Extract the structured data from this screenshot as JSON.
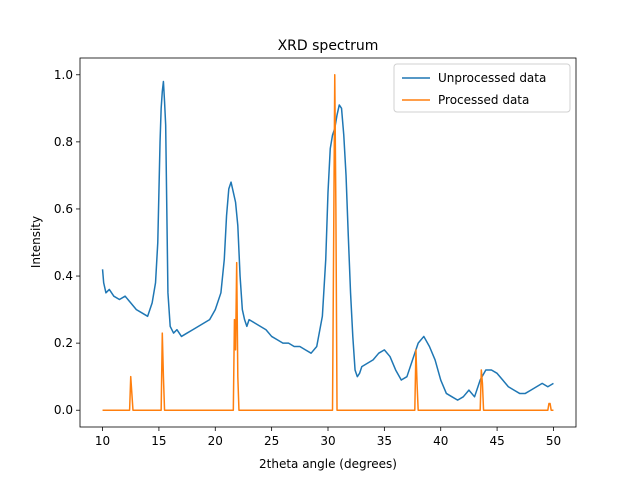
{
  "chart_data": {
    "type": "line",
    "title": "XRD spectrum",
    "xlabel": "2theta angle (degrees)",
    "ylabel": "Intensity",
    "xlim": [
      8.0,
      52.0
    ],
    "ylim": [
      -0.05,
      1.05
    ],
    "xticks": [
      10,
      15,
      20,
      25,
      30,
      35,
      40,
      45,
      50
    ],
    "xtick_labels": [
      "10",
      "15",
      "20",
      "25",
      "30",
      "35",
      "40",
      "45",
      "50"
    ],
    "yticks": [
      0.0,
      0.2,
      0.4,
      0.6,
      0.8,
      1.0
    ],
    "ytick_labels": [
      "0.0",
      "0.2",
      "0.4",
      "0.6",
      "0.8",
      "1.0"
    ],
    "grid": false,
    "legend_position": "top-right",
    "series": [
      {
        "name": "Unprocessed data",
        "color": "#1f77b4",
        "x": [
          10.0,
          10.1,
          10.3,
          10.6,
          11.0,
          11.5,
          12.0,
          12.5,
          13.0,
          13.5,
          14.0,
          14.4,
          14.7,
          14.9,
          15.0,
          15.1,
          15.2,
          15.3,
          15.4,
          15.5,
          15.6,
          15.7,
          15.8,
          16.0,
          16.3,
          16.6,
          17.0,
          17.5,
          18.0,
          18.5,
          19.0,
          19.5,
          20.0,
          20.5,
          20.8,
          21.0,
          21.2,
          21.4,
          21.6,
          21.8,
          22.0,
          22.2,
          22.4,
          22.6,
          22.8,
          23.0,
          23.5,
          24.0,
          24.5,
          25.0,
          25.5,
          26.0,
          26.5,
          27.0,
          27.5,
          28.0,
          28.5,
          29.0,
          29.5,
          29.8,
          30.0,
          30.2,
          30.4,
          30.6,
          30.8,
          31.0,
          31.2,
          31.4,
          31.6,
          31.8,
          32.0,
          32.2,
          32.4,
          32.6,
          32.8,
          33.0,
          33.5,
          34.0,
          34.5,
          35.0,
          35.5,
          36.0,
          36.5,
          37.0,
          37.5,
          38.0,
          38.5,
          39.0,
          39.5,
          40.0,
          40.5,
          41.0,
          41.5,
          42.0,
          42.5,
          43.0,
          43.5,
          44.0,
          44.5,
          45.0,
          45.5,
          46.0,
          46.5,
          47.0,
          47.5,
          48.0,
          48.5,
          49.0,
          49.5,
          50.0
        ],
        "values": [
          0.42,
          0.38,
          0.35,
          0.36,
          0.34,
          0.33,
          0.34,
          0.32,
          0.3,
          0.29,
          0.28,
          0.32,
          0.38,
          0.5,
          0.65,
          0.8,
          0.9,
          0.95,
          0.98,
          0.92,
          0.85,
          0.6,
          0.35,
          0.25,
          0.23,
          0.24,
          0.22,
          0.23,
          0.24,
          0.25,
          0.26,
          0.27,
          0.3,
          0.35,
          0.45,
          0.58,
          0.66,
          0.68,
          0.65,
          0.62,
          0.55,
          0.4,
          0.3,
          0.27,
          0.25,
          0.27,
          0.26,
          0.25,
          0.24,
          0.22,
          0.21,
          0.2,
          0.2,
          0.19,
          0.19,
          0.18,
          0.17,
          0.19,
          0.28,
          0.45,
          0.65,
          0.78,
          0.82,
          0.84,
          0.88,
          0.91,
          0.9,
          0.82,
          0.7,
          0.52,
          0.35,
          0.22,
          0.12,
          0.1,
          0.11,
          0.13,
          0.14,
          0.15,
          0.17,
          0.18,
          0.16,
          0.12,
          0.09,
          0.1,
          0.15,
          0.2,
          0.22,
          0.19,
          0.15,
          0.09,
          0.05,
          0.04,
          0.03,
          0.04,
          0.06,
          0.04,
          0.09,
          0.12,
          0.12,
          0.11,
          0.09,
          0.07,
          0.06,
          0.05,
          0.05,
          0.06,
          0.07,
          0.08,
          0.07,
          0.08
        ]
      },
      {
        "name": "Processed data",
        "color": "#ff7f0e",
        "x": [
          10.0,
          12.4,
          12.5,
          12.6,
          12.7,
          15.2,
          15.3,
          15.4,
          15.5,
          21.6,
          21.7,
          21.8,
          21.9,
          22.0,
          22.1,
          30.4,
          30.5,
          30.6,
          30.7,
          30.8,
          30.9,
          37.7,
          37.8,
          37.9,
          38.0,
          43.5,
          43.6,
          43.7,
          43.8,
          49.5,
          49.6,
          49.7,
          49.8,
          50.0
        ],
        "values": [
          0.0,
          0.0,
          0.1,
          0.05,
          0.0,
          0.0,
          0.23,
          0.1,
          0.0,
          0.0,
          0.27,
          0.18,
          0.44,
          0.1,
          0.0,
          0.0,
          0.5,
          1.0,
          0.6,
          0.0,
          0.0,
          0.0,
          0.18,
          0.08,
          0.0,
          0.0,
          0.12,
          0.08,
          0.0,
          0.0,
          0.02,
          0.02,
          0.0,
          0.0
        ]
      }
    ]
  }
}
